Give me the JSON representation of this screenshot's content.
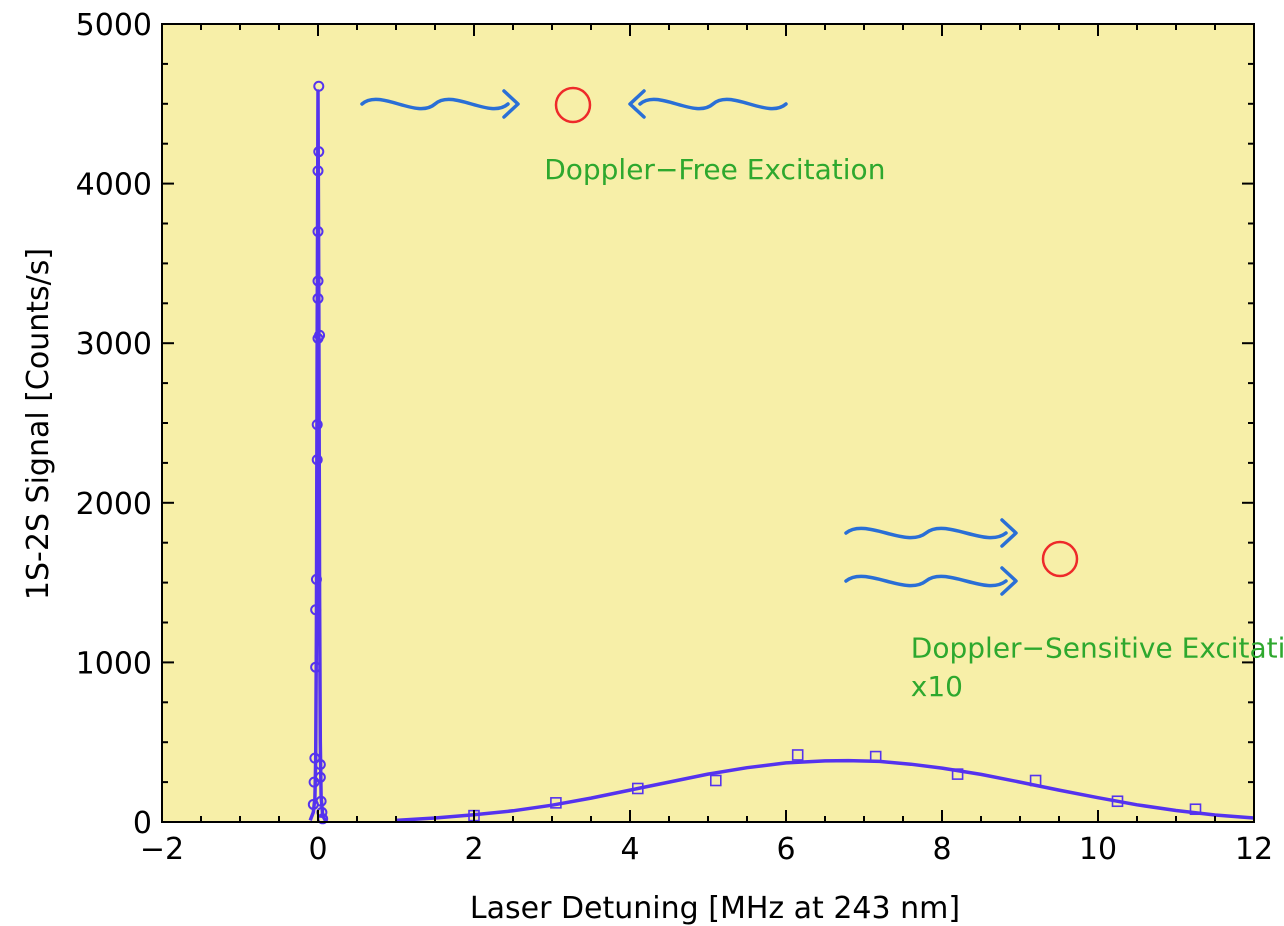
{
  "chart_data": {
    "type": "scatter",
    "xlabel": "Laser Detuning [MHz at 243 nm]",
    "ylabel": "1S-2S Signal [Counts/s]",
    "xlim": [
      -2,
      12
    ],
    "ylim": [
      0,
      5000
    ],
    "xticks": [
      -2,
      0,
      2,
      4,
      6,
      8,
      10,
      12
    ],
    "yticks": [
      0,
      1000,
      2000,
      3000,
      4000,
      5000
    ],
    "x_tick_labels": [
      "−2",
      "0",
      "2",
      "4",
      "6",
      "8",
      "10",
      "12"
    ],
    "y_tick_labels": [
      "0",
      "1000",
      "2000",
      "3000",
      "4000",
      "5000"
    ],
    "grid": false,
    "legend": "none",
    "series": [
      {
        "marker": "circle",
        "fit": "narrow peak",
        "points": [
          {
            "x": -0.06,
            "y": 110
          },
          {
            "x": -0.05,
            "y": 250
          },
          {
            "x": -0.04,
            "y": 400
          },
          {
            "x": -0.03,
            "y": 970
          },
          {
            "x": -0.03,
            "y": 1330
          },
          {
            "x": -0.02,
            "y": 1520
          },
          {
            "x": -0.01,
            "y": 2270
          },
          {
            "x": -0.01,
            "y": 2490
          },
          {
            "x": 0.0,
            "y": 3030
          },
          {
            "x": 0.0,
            "y": 3280
          },
          {
            "x": 0.0,
            "y": 3390
          },
          {
            "x": 0.0,
            "y": 3700
          },
          {
            "x": 0.0,
            "y": 4080
          },
          {
            "x": 0.01,
            "y": 4200
          },
          {
            "x": 0.01,
            "y": 4610
          },
          {
            "x": 0.02,
            "y": 3050
          },
          {
            "x": 0.03,
            "y": 360
          },
          {
            "x": 0.03,
            "y": 280
          },
          {
            "x": 0.04,
            "y": 130
          },
          {
            "x": 0.05,
            "y": 60
          },
          {
            "x": 0.06,
            "y": 20
          }
        ],
        "fit_line": [
          [
            -0.1,
            10
          ],
          [
            -0.06,
            60
          ],
          [
            -0.04,
            150
          ],
          [
            -0.03,
            400
          ],
          [
            -0.02,
            1200
          ],
          [
            -0.01,
            3100
          ],
          [
            0.0,
            4580
          ],
          [
            0.01,
            3300
          ],
          [
            0.02,
            1400
          ],
          [
            0.03,
            500
          ],
          [
            0.04,
            160
          ],
          [
            0.06,
            40
          ],
          [
            0.1,
            5
          ]
        ]
      },
      {
        "marker": "square",
        "fit": "broad peak",
        "points": [
          {
            "x": 2.0,
            "y": 40
          },
          {
            "x": 3.05,
            "y": 120
          },
          {
            "x": 4.1,
            "y": 210
          },
          {
            "x": 5.1,
            "y": 260
          },
          {
            "x": 6.15,
            "y": 420
          },
          {
            "x": 7.15,
            "y": 410
          },
          {
            "x": 8.2,
            "y": 300
          },
          {
            "x": 9.2,
            "y": 260
          },
          {
            "x": 10.25,
            "y": 130
          },
          {
            "x": 11.25,
            "y": 80
          }
        ],
        "fit_line": [
          [
            1.0,
            10
          ],
          [
            1.5,
            25
          ],
          [
            2.0,
            45
          ],
          [
            2.5,
            70
          ],
          [
            3.0,
            105
          ],
          [
            3.5,
            150
          ],
          [
            4.0,
            200
          ],
          [
            4.5,
            250
          ],
          [
            5.0,
            300
          ],
          [
            5.5,
            340
          ],
          [
            6.0,
            370
          ],
          [
            6.5,
            383
          ],
          [
            6.8,
            385
          ],
          [
            7.2,
            380
          ],
          [
            7.6,
            362
          ],
          [
            8.0,
            338
          ],
          [
            8.5,
            298
          ],
          [
            9.0,
            250
          ],
          [
            9.5,
            200
          ],
          [
            10.0,
            152
          ],
          [
            10.5,
            108
          ],
          [
            11.0,
            72
          ],
          [
            11.5,
            44
          ],
          [
            12.0,
            25
          ]
        ]
      }
    ],
    "annotations": [
      {
        "text": "Doppler−Free Excitation",
        "x": 2.9,
        "y": 4030,
        "color": "#2ea82e"
      },
      {
        "text": "Doppler−Sensitive Excitation",
        "x": 7.6,
        "y": 1030,
        "color": "#2ea82e"
      },
      {
        "text": "x10",
        "x": 7.6,
        "y": 790,
        "color": "#2ea82e"
      }
    ],
    "colors": {
      "plot_background": "#f7efa8",
      "data": "#5533ee",
      "annotation_text": "#2ea82e",
      "wave_arrows": "#2a6fd6",
      "atom": "#ee2a2a"
    },
    "icons": [
      "wave-arrow-icon",
      "atom-circle-icon"
    ]
  }
}
